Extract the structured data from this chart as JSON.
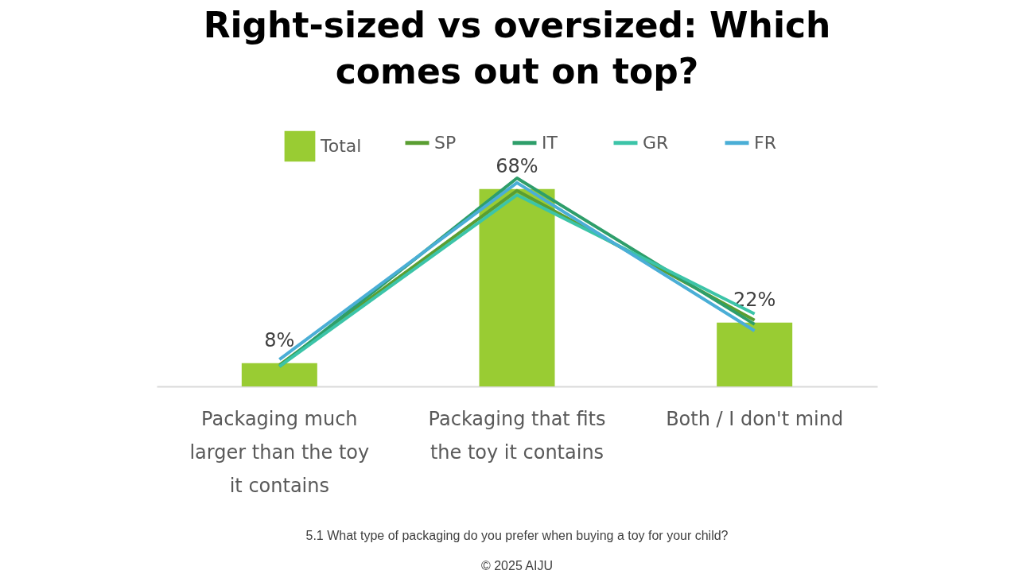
{
  "chart_data": {
    "type": "bar",
    "title": "Right-sized vs oversized: Which comes out on top?",
    "categories": [
      "Packaging much larger than the toy it contains",
      "Packaging that fits the toy it contains",
      "Both / I don't mind"
    ],
    "series": [
      {
        "name": "Total",
        "color": "#99cc33",
        "values": [
          8,
          68,
          22
        ],
        "value_labels": [
          "8%",
          "68%",
          "22%"
        ]
      },
      {
        "name": "SP",
        "type": "line",
        "color": "#5a9e32",
        "values": [
          7.4,
          67.5,
          22.8
        ]
      },
      {
        "name": "IT",
        "type": "line",
        "color": "#2e9e6a",
        "values": [
          6.9,
          71.8,
          21.4
        ]
      },
      {
        "name": "GR",
        "type": "line",
        "color": "#3cc4a8",
        "values": [
          6.9,
          66,
          25
        ]
      },
      {
        "name": "FR",
        "type": "line",
        "color": "#4aaed6",
        "values": [
          9.3,
          70.2,
          19.2
        ]
      }
    ],
    "tick_labels": "x",
    "legend": "top",
    "annotations": [
      "5.1 What type of packaging do you prefer when buying a toy for your child?",
      "© 2025 AIJU"
    ]
  }
}
